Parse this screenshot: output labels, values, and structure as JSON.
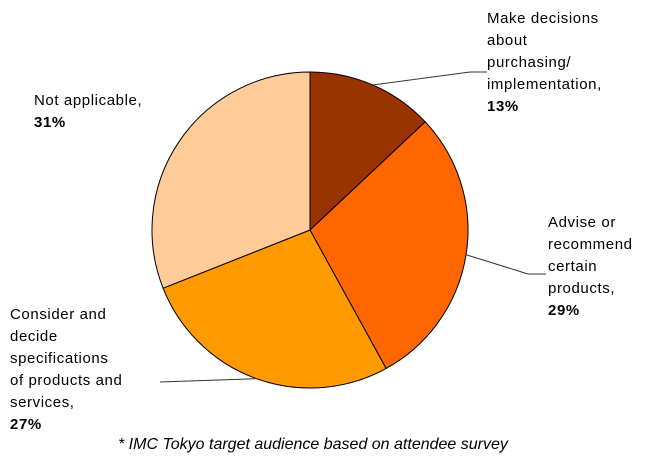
{
  "chart_data": {
    "type": "pie",
    "start_angle_deg": 0,
    "direction": "clockwise",
    "slices": [
      {
        "label_lines": [
          "Make decisions",
          "about",
          "purchasing/",
          "implementation,"
        ],
        "value": 13,
        "value_label": "13%",
        "color": "#993300"
      },
      {
        "label_lines": [
          "Advise or",
          "recommend",
          "certain",
          "products,"
        ],
        "value": 29,
        "value_label": "29%",
        "color": "#ff6600"
      },
      {
        "label_lines": [
          "Consider and",
          "decide",
          "specifications",
          "of products and",
          "services,"
        ],
        "value": 27,
        "value_label": "27%",
        "color": "#ff9900"
      },
      {
        "label_lines": [
          "Not applicable,"
        ],
        "value": 31,
        "value_label": "31%",
        "color": "#ffcc99"
      }
    ],
    "edge_color": "#000000",
    "leader_color": "#333333"
  },
  "footnote": "* IMC Tokyo target audience based on attendee survey"
}
